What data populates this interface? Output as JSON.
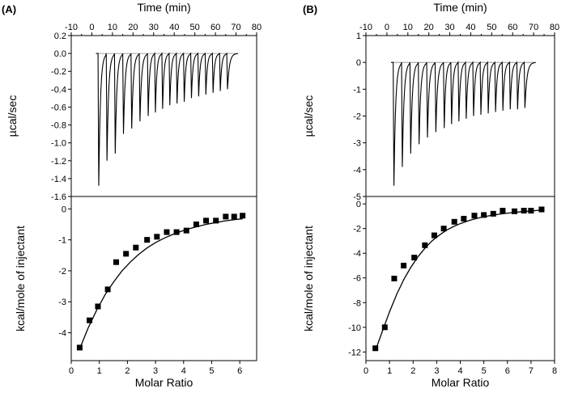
{
  "chart_data": [
    {
      "type": "line",
      "panel_label": "(A)",
      "top_plot": {
        "xlabel": "Time (min)",
        "ylabel": "µcal/sec",
        "xlim": [
          -10,
          80
        ],
        "ylim": [
          -1.6,
          0.2
        ],
        "xticks": [
          "-10",
          "0",
          "10",
          "20",
          "30",
          "40",
          "50",
          "60",
          "70",
          "80"
        ],
        "yticks": [
          "0.2",
          "0.0",
          "-0.2",
          "-0.4",
          "-0.6",
          "-0.8",
          "-1.0",
          "-1.2",
          "-1.4",
          "-1.6"
        ],
        "baseline": 0.0,
        "injection_times": [
          3,
          7,
          11,
          15,
          19,
          23,
          27,
          30.5,
          34,
          37.5,
          41,
          44.5,
          48,
          51.5,
          55,
          58.5,
          62,
          65.5
        ],
        "peak_values": [
          -1.48,
          -1.2,
          -1.12,
          -0.9,
          -0.84,
          -0.76,
          -0.7,
          -0.66,
          -0.62,
          -0.58,
          -0.56,
          -0.54,
          -0.5,
          -0.48,
          -0.46,
          -0.44,
          -0.42,
          -0.4
        ]
      },
      "bottom_plot": {
        "xlabel": "Molar Ratio",
        "ylabel": "kcal/mole of injectant",
        "xlim": [
          0,
          6.6
        ],
        "ylim": [
          -4.9,
          0.4
        ],
        "xticks": [
          "0",
          "1",
          "2",
          "3",
          "4",
          "5",
          "6"
        ],
        "yticks": [
          "0",
          "-1",
          "-2",
          "-3",
          "-4"
        ],
        "points_x": [
          0.3,
          0.65,
          0.95,
          1.3,
          1.6,
          1.95,
          2.3,
          2.7,
          3.05,
          3.4,
          3.75,
          4.1,
          4.45,
          4.8,
          5.15,
          5.5,
          5.8,
          6.1
        ],
        "points_y": [
          -4.48,
          -3.6,
          -3.15,
          -2.6,
          -1.72,
          -1.45,
          -1.25,
          -1.0,
          -0.9,
          -0.75,
          -0.75,
          -0.7,
          -0.5,
          -0.38,
          -0.38,
          -0.25,
          -0.25,
          -0.22
        ],
        "fit_x": [
          0.3,
          0.6,
          0.9,
          1.2,
          1.5,
          1.8,
          2.1,
          2.4,
          2.7,
          3.0,
          3.3,
          3.6,
          3.9,
          4.2,
          4.5,
          4.8,
          5.1,
          5.4,
          5.7,
          6.1
        ],
        "fit_y": [
          -4.52,
          -3.85,
          -3.28,
          -2.78,
          -2.37,
          -2.01,
          -1.72,
          -1.47,
          -1.26,
          -1.09,
          -0.95,
          -0.83,
          -0.73,
          -0.64,
          -0.57,
          -0.5,
          -0.45,
          -0.4,
          -0.36,
          -0.32
        ]
      }
    },
    {
      "type": "line",
      "panel_label": "(B)",
      "top_plot": {
        "xlabel": "Time (min)",
        "ylabel": "µcal/sec",
        "xlim": [
          -10,
          80
        ],
        "ylim": [
          -5,
          1
        ],
        "xticks": [
          "-10",
          "0",
          "10",
          "20",
          "30",
          "40",
          "50",
          "60",
          "70",
          "80"
        ],
        "yticks": [
          "1",
          "0",
          "-1",
          "-2",
          "-3",
          "-4",
          "-5"
        ],
        "baseline": 0.0,
        "injection_times": [
          3,
          7,
          11,
          15,
          19,
          23,
          27,
          30.5,
          34,
          37.5,
          41,
          44.5,
          48,
          51.5,
          55,
          58.5,
          62,
          65.5
        ],
        "peak_values": [
          -4.6,
          -3.9,
          -3.4,
          -3.05,
          -2.8,
          -2.6,
          -2.45,
          -2.3,
          -2.2,
          -2.1,
          -2.0,
          -1.95,
          -1.9,
          -1.85,
          -1.8,
          -1.75,
          -1.75,
          -1.7
        ]
      },
      "bottom_plot": {
        "xlabel": "Molar Ratio",
        "ylabel": "kcal/mole of injectant",
        "xlim": [
          0,
          8
        ],
        "ylim": [
          -12.7,
          0.6
        ],
        "xticks": [
          "0",
          "1",
          "2",
          "3",
          "4",
          "5",
          "6",
          "7",
          "8"
        ],
        "yticks": [
          "0",
          "-2",
          "-4",
          "-6",
          "-8",
          "-10",
          "-12"
        ],
        "points_x": [
          0.4,
          0.8,
          1.2,
          1.6,
          2.05,
          2.5,
          2.9,
          3.3,
          3.75,
          4.15,
          4.6,
          5.0,
          5.4,
          5.8,
          6.3,
          6.7,
          7.0,
          7.45
        ],
        "points_y": [
          -11.7,
          -10.0,
          -6.05,
          -5.0,
          -4.35,
          -3.35,
          -2.55,
          -2.0,
          -1.45,
          -1.2,
          -0.95,
          -0.9,
          -0.8,
          -0.55,
          -0.6,
          -0.55,
          -0.55,
          -0.45
        ],
        "fit_x": [
          0.4,
          0.7,
          1.0,
          1.3,
          1.6,
          1.9,
          2.2,
          2.5,
          2.8,
          3.1,
          3.4,
          3.7,
          4.0,
          4.4,
          4.8,
          5.2,
          5.6,
          6.0,
          6.5,
          7.0,
          7.45
        ],
        "fit_y": [
          -11.9,
          -10.3,
          -8.75,
          -7.35,
          -6.15,
          -5.15,
          -4.3,
          -3.6,
          -3.0,
          -2.55,
          -2.15,
          -1.85,
          -1.6,
          -1.33,
          -1.13,
          -0.97,
          -0.85,
          -0.75,
          -0.65,
          -0.57,
          -0.5
        ]
      }
    }
  ]
}
